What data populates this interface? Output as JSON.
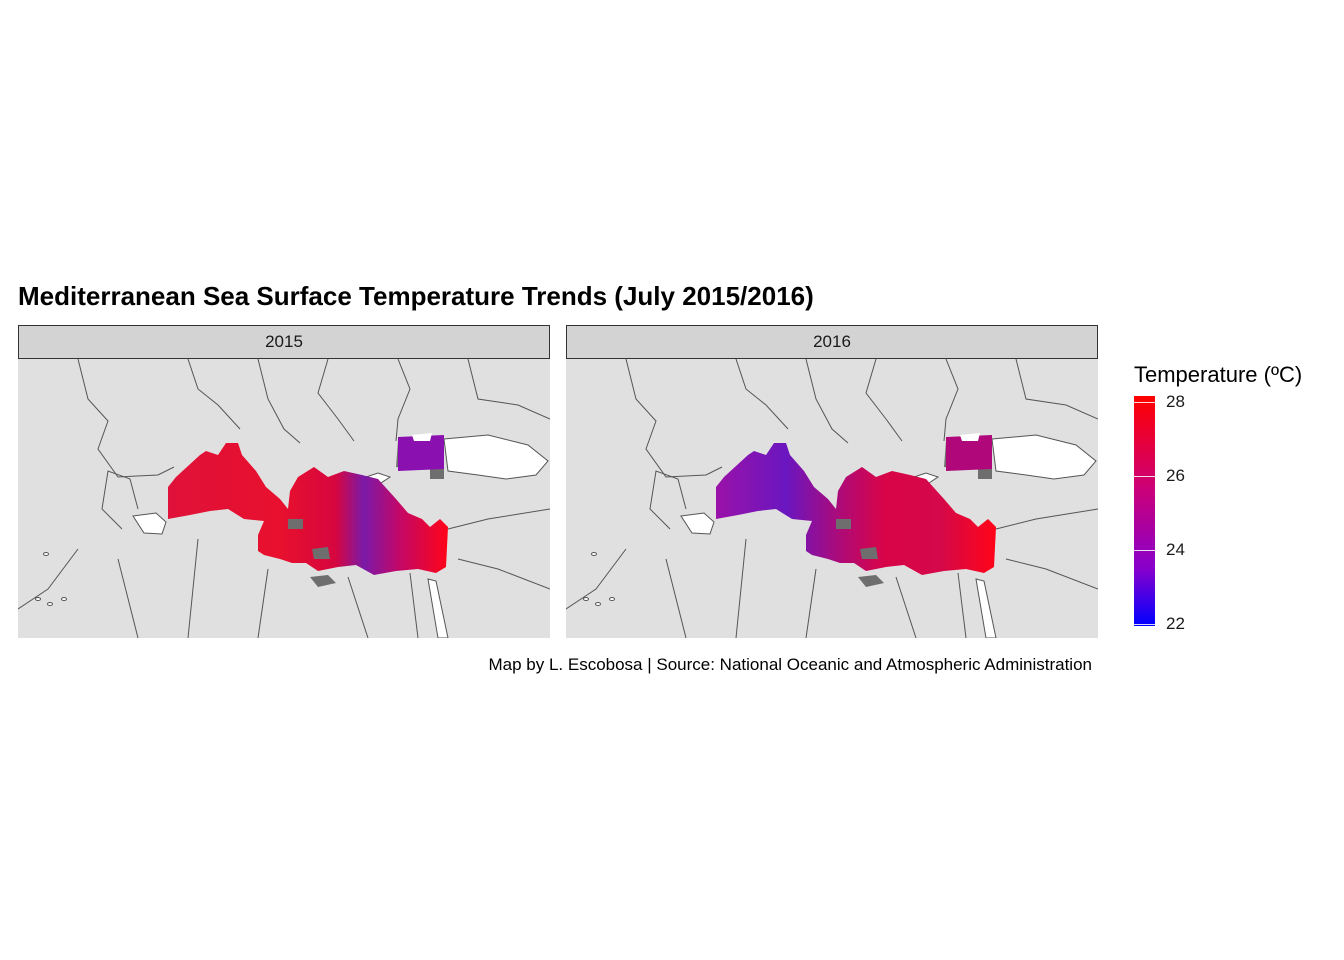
{
  "title": "Mediterranean Sea Surface Temperature Trends (July 2015/2016)",
  "panels": [
    {
      "label": "2015"
    },
    {
      "label": "2016"
    }
  ],
  "legend": {
    "title": "Temperature (ºC)",
    "ticks": [
      "28",
      "26",
      "24",
      "22"
    ],
    "min": 22,
    "max": 28,
    "low_color": "#0000ff",
    "high_color": "#ff0000"
  },
  "caption": "Map by L. Escobosa | Source: National Oceanic and Atmospheric Administration",
  "colors": {
    "land": "#e0e0e0",
    "border": "#555555",
    "missing_sea": "#6e6e6e",
    "open_water": "#ffffff",
    "strip": "#d3d3d3"
  }
}
